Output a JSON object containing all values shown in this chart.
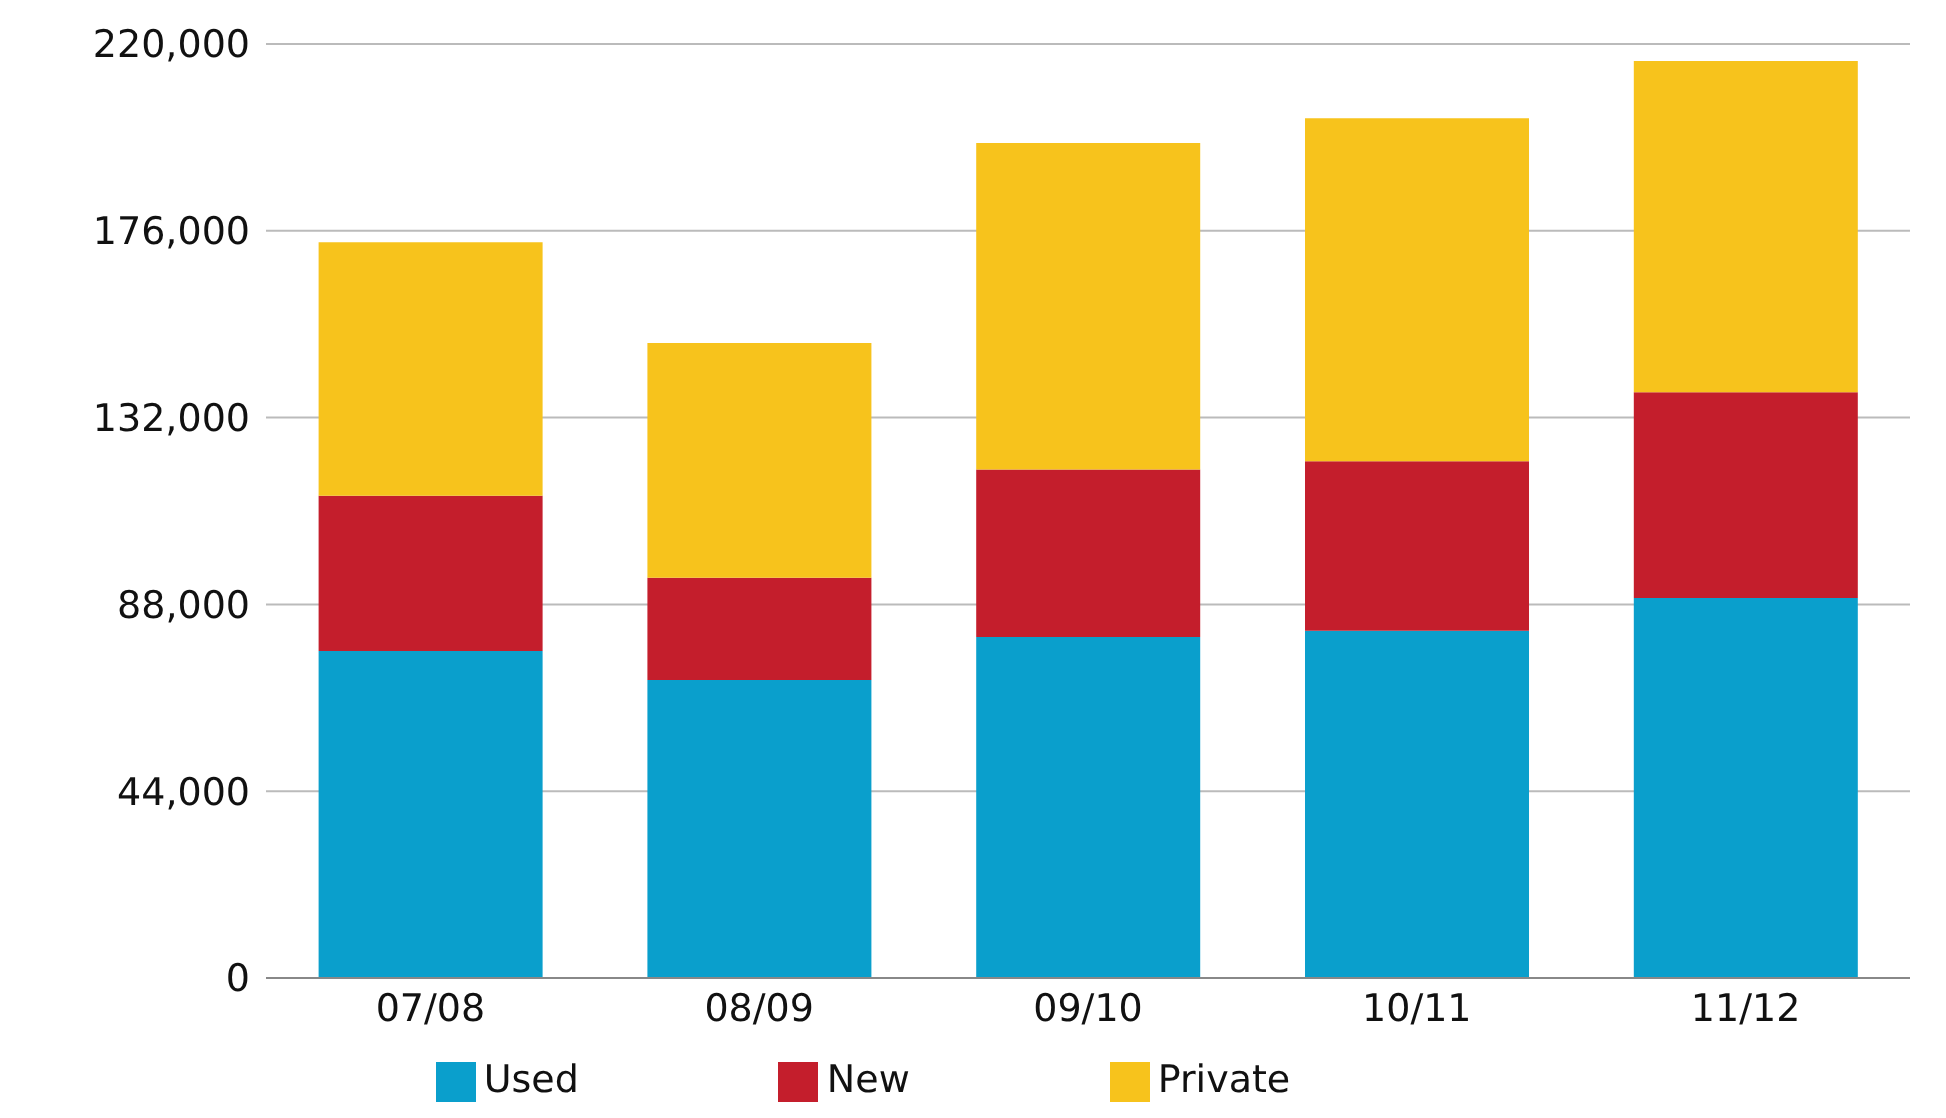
{
  "chart_data": {
    "type": "bar",
    "stacked": true,
    "categories": [
      "07/08",
      "08/09",
      "09/10",
      "10/11",
      "11/12"
    ],
    "series": [
      {
        "name": "Used",
        "color": "#0a9fcc",
        "values": [
          77000,
          70200,
          80300,
          81800,
          89500
        ]
      },
      {
        "name": "New",
        "color": "#c41e2c",
        "values": [
          36600,
          24100,
          39500,
          39900,
          48500
        ]
      },
      {
        "name": "Private",
        "color": "#f7c31c",
        "values": [
          59700,
          55300,
          76900,
          80800,
          78000
        ]
      }
    ],
    "ylim": [
      0,
      220000
    ],
    "yticks": [
      0,
      {
        "value": 44000,
        "label": "44,000"
      },
      {
        "value": 88000,
        "label": "88,000"
      },
      {
        "value": 132000,
        "label": "132,000"
      },
      {
        "value": 176000,
        "label": "176,000"
      },
      {
        "value": 220000,
        "label": "220,000"
      }
    ],
    "grid": "y",
    "legend": "bottom"
  }
}
